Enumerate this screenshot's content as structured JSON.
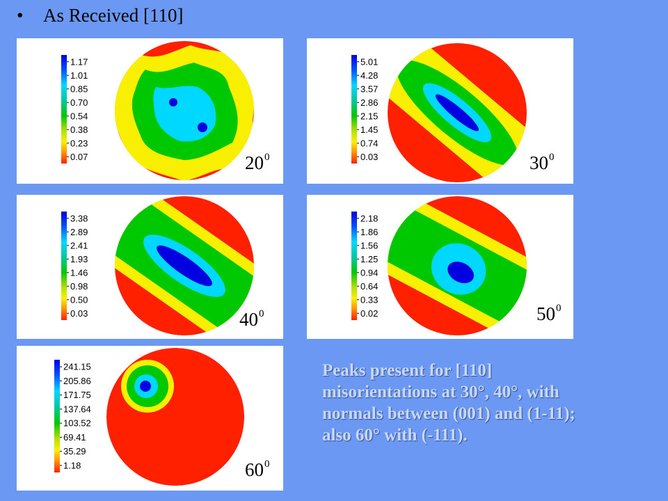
{
  "title": "As Received [110]",
  "bullet": "•",
  "colors": {
    "background": "#6b98f2",
    "scale": [
      "#0000e0",
      "#0055ff",
      "#00d8ff",
      "#00c8a0",
      "#00c800",
      "#b8e000",
      "#f8f000",
      "#ff9000",
      "#ff2000"
    ]
  },
  "panels": [
    {
      "legend": [
        "1.17",
        "1.01",
        "0.85",
        "0.70",
        "0.54",
        "0.38",
        "0.23",
        "0.07"
      ],
      "angle": {
        "value": "20",
        "superscript": "0"
      }
    },
    {
      "legend": [
        "5.01",
        "4.28",
        "3.57",
        "2.86",
        "2.15",
        "1.45",
        "0.74",
        "0.03"
      ],
      "angle": {
        "value": "30",
        "superscript": "0"
      }
    },
    {
      "legend": [
        "3.38",
        "2.89",
        "2.41",
        "1.93",
        "1.46",
        "0.98",
        "0.50",
        "0.03"
      ],
      "angle": {
        "value": "40",
        "superscript": "0"
      }
    },
    {
      "legend": [
        "2.18",
        "1.86",
        "1.56",
        "1.25",
        "0.94",
        "0.64",
        "0.33",
        "0.02"
      ],
      "angle": {
        "value": "50",
        "superscript": "0"
      }
    },
    {
      "legend": [
        "241.15",
        "205.86",
        "171.75",
        "137.64",
        "103.52",
        "69.41",
        "35.29",
        "1.18"
      ],
      "angle": {
        "value": "60",
        "superscript": "0"
      }
    }
  ],
  "caption": {
    "lines": [
      "Peaks present for [110]",
      "misorientations at 30°, 40°, with",
      "normals between (001) and (1-11);",
      "also 60° with (-111)."
    ]
  }
}
